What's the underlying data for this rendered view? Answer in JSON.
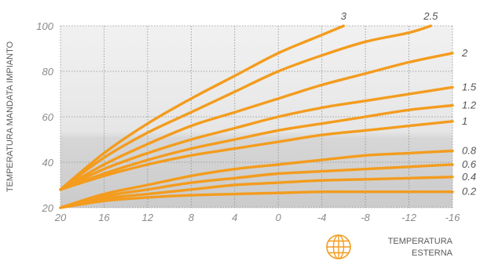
{
  "chart_data": {
    "type": "line",
    "title": "",
    "ylabel": "TEMPERATURA MANDATA IMPIANTO",
    "xlabel_lines": [
      "TEMPERATURA",
      "ESTERNA"
    ],
    "x_ticks": [
      20,
      16,
      12,
      8,
      4,
      0,
      -4,
      -8,
      -12,
      -16
    ],
    "x_tick_labels": [
      "20",
      "16",
      "12",
      "8",
      "4",
      "0",
      "-4",
      "-8",
      "-12",
      "-16"
    ],
    "y_ticks": [
      20,
      40,
      60,
      80,
      100
    ],
    "y_tick_labels": [
      "20",
      "40",
      "60",
      "80",
      "100"
    ],
    "xlim": [
      20,
      -16
    ],
    "ylim": [
      20,
      100
    ],
    "x_reversed": true,
    "grid": true,
    "line_color": "#f39c1e",
    "series": [
      {
        "name": "3",
        "x": [
          20,
          16,
          12,
          8,
          4,
          0,
          -4,
          -6
        ],
        "y": [
          28,
          44,
          57,
          68,
          78,
          88,
          96,
          100
        ]
      },
      {
        "name": "2.5",
        "x": [
          20,
          16,
          12,
          8,
          4,
          0,
          -4,
          -8,
          -12,
          -14
        ],
        "y": [
          28,
          42,
          53,
          62,
          71,
          80,
          87,
          93,
          97,
          100
        ]
      },
      {
        "name": "2",
        "x": [
          20,
          16,
          12,
          8,
          4,
          0,
          -4,
          -8,
          -12,
          -16
        ],
        "y": [
          28,
          39,
          48,
          56,
          62,
          68,
          74,
          79,
          84,
          88
        ]
      },
      {
        "name": "1.5",
        "x": [
          20,
          16,
          12,
          8,
          4,
          0,
          -4,
          -8,
          -12,
          -16
        ],
        "y": [
          28,
          37,
          44,
          50,
          55,
          60,
          64,
          67,
          70,
          73
        ]
      },
      {
        "name": "1.2",
        "x": [
          20,
          16,
          12,
          8,
          4,
          0,
          -4,
          -8,
          -12,
          -16
        ],
        "y": [
          28,
          35,
          41,
          46,
          50,
          54,
          57,
          60,
          63,
          65
        ]
      },
      {
        "name": "1",
        "x": [
          20,
          16,
          12,
          8,
          4,
          0,
          -4,
          -8,
          -12,
          -16
        ],
        "y": [
          28,
          34,
          39,
          43,
          46,
          49,
          52,
          54,
          56,
          58
        ]
      },
      {
        "name": "0.8",
        "x": [
          20,
          16,
          12,
          8,
          4,
          0,
          -4,
          -8,
          -12,
          -16
        ],
        "y": [
          20,
          26,
          30,
          34,
          37,
          39,
          41,
          43,
          44,
          45
        ]
      },
      {
        "name": "0.6",
        "x": [
          20,
          16,
          12,
          8,
          4,
          0,
          -4,
          -8,
          -12,
          -16
        ],
        "y": [
          20,
          25,
          28,
          31,
          33,
          35,
          36,
          37,
          38,
          39
        ]
      },
      {
        "name": "0.4",
        "x": [
          20,
          16,
          12,
          8,
          4,
          0,
          -4,
          -8,
          -12,
          -16
        ],
        "y": [
          20,
          24,
          26,
          28,
          30,
          31,
          32,
          32.5,
          33,
          33.5
        ]
      },
      {
        "name": "0.2",
        "x": [
          20,
          16,
          12,
          8,
          4,
          0,
          -4,
          -8,
          -12,
          -16
        ],
        "y": [
          20,
          23,
          24.5,
          25.5,
          26,
          26.5,
          27,
          27,
          27,
          27
        ]
      }
    ]
  }
}
